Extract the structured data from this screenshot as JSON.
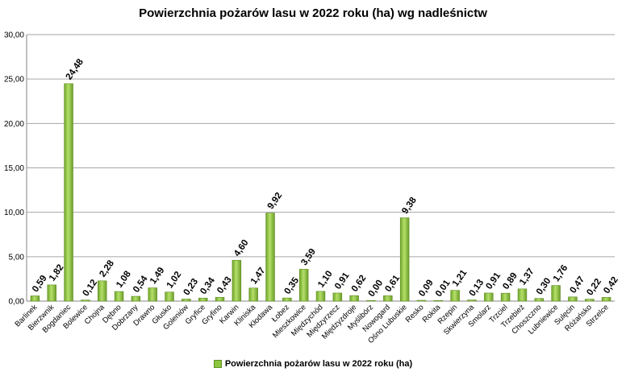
{
  "chart_data": {
    "type": "bar",
    "title": "Powierzchnia pożarów lasu w 2022 roku (ha) wg nadleśnictw",
    "categories": [
      "Barlinek",
      "Bierzwnik",
      "Bogdaniec",
      "Bolewice",
      "Chojna",
      "Dębno",
      "Dobrzany",
      "Drawno",
      "Głusko",
      "Goleniów",
      "Gryfice",
      "Gryfino",
      "Karwin",
      "Kliniska",
      "Kłodawa",
      "Łobez",
      "Mieszkowice",
      "Międzychód",
      "Międzyrzecz",
      "Międzyzdroje",
      "Myślibórz",
      "Nowogard",
      "Ośno Lubuskie",
      "Resko",
      "Rokita",
      "Rzepin",
      "Skwierzyna",
      "Smolarz",
      "Trzciel",
      "Trzebież",
      "Choszczno",
      "Lubniewice",
      "Sulęcin",
      "Różańsko",
      "Strzelce"
    ],
    "series": [
      {
        "name": "Powierzchnia pożarów lasu w 2022 roku (ha)",
        "values": [
          0.59,
          1.82,
          24.48,
          0.12,
          2.28,
          1.08,
          0.54,
          1.49,
          1.02,
          0.23,
          0.34,
          0.43,
          4.6,
          1.47,
          9.92,
          0.35,
          3.59,
          1.1,
          0.91,
          0.62,
          0.0,
          0.61,
          9.38,
          0.09,
          0.01,
          1.21,
          0.13,
          0.91,
          0.89,
          1.37,
          0.3,
          1.76,
          0.47,
          0.22,
          0.42
        ],
        "labels": [
          "0,59",
          "1,82",
          "24,48",
          "0,12",
          "2,28",
          "1,08",
          "0,54",
          "1,49",
          "1,02",
          "0,23",
          "0,34",
          "0,43",
          "4,60",
          "1,47",
          "9,92",
          "0,35",
          "3,59",
          "1,10",
          "0,91",
          "0,62",
          "0,00",
          "0,61",
          "9,38",
          "0,09",
          "0,01",
          "1,21",
          "0,13",
          "0,91",
          "0,89",
          "1,37",
          "0,30",
          "1,76",
          "0,47",
          "0,22",
          "0,42"
        ]
      }
    ],
    "yticks": [
      "0,00",
      "5,00",
      "10,00",
      "15,00",
      "20,00",
      "25,00",
      "30,00"
    ],
    "ylim": [
      0,
      30
    ],
    "grid": true,
    "legend_position": "bottom",
    "bar_color": "#8dc63f"
  }
}
